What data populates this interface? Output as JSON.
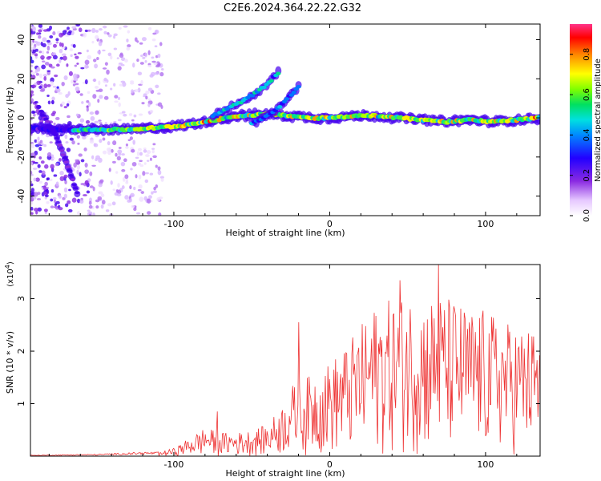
{
  "title": "C2E6.2024.364.22.22.G32",
  "chart_data": [
    {
      "type": "heatmap",
      "xlabel": "Height of straight line (km)",
      "ylabel": "Frequency (Hz)",
      "xlim": [
        -192,
        135
      ],
      "ylim": [
        -50,
        48
      ],
      "x_ticks": [
        -100,
        0,
        100
      ],
      "y_ticks": [
        -40,
        -20,
        0,
        20,
        40
      ],
      "colorbar": {
        "label": "Normalized spectral amplitude",
        "range": [
          0,
          0.95
        ],
        "ticks": [
          "0.0",
          "0.2",
          "0.4",
          "0.6",
          "0.8"
        ]
      },
      "ridge_main": {
        "x": [
          -192,
          -180,
          -165,
          -150,
          -130,
          -110,
          -95,
          -80,
          -60,
          -40,
          -25,
          -10,
          0,
          15,
          30,
          45,
          60,
          75,
          90,
          105,
          120,
          135
        ],
        "y": [
          -5,
          -6,
          -6,
          -6,
          -6,
          -5,
          -4,
          -2,
          1,
          2,
          1,
          0,
          0,
          1,
          1,
          0,
          -1,
          -2,
          -1,
          -2,
          -1,
          0
        ]
      },
      "ridge_branch_upper": {
        "x": [
          -75,
          -65,
          -55,
          -45,
          -38,
          -32
        ],
        "y": [
          1,
          5,
          9,
          14,
          19,
          24
        ]
      },
      "ridge_branch_lower": {
        "x": [
          -50,
          -42,
          -35,
          -28,
          -20
        ],
        "y": [
          -3,
          0,
          4,
          9,
          16
        ]
      },
      "ridge_diagonal": {
        "x": [
          -185,
          -175,
          -168,
          -162
        ],
        "y": [
          3,
          -10,
          -25,
          -38
        ]
      }
    },
    {
      "type": "line",
      "xlabel": "Height of straight line (km)",
      "ylabel": "SNR (10 * v/v)",
      "y_multiplier": "(x10",
      "y_multiplier_exp": "4",
      "y_multiplier_close": ")",
      "xlim": [
        -192,
        135
      ],
      "ylim": [
        0,
        3.65
      ],
      "x_ticks": [
        -100,
        0,
        100
      ],
      "y_ticks": [
        1,
        2,
        3
      ],
      "color": "#ee3333",
      "envelope": {
        "x": [
          -192,
          -150,
          -120,
          -110,
          -100,
          -90,
          -80,
          -70,
          -60,
          -50,
          -40,
          -30,
          -25,
          -20,
          -15,
          -10,
          -5,
          0,
          10,
          20,
          30,
          40,
          50,
          60,
          70,
          80,
          90,
          100,
          110,
          120,
          135
        ],
        "y": [
          0.02,
          0.04,
          0.08,
          0.08,
          0.15,
          0.35,
          0.55,
          0.45,
          0.45,
          0.5,
          0.6,
          1.0,
          1.4,
          1.3,
          1.5,
          1.6,
          1.7,
          1.8,
          2.1,
          2.5,
          2.9,
          3.0,
          3.1,
          3.0,
          3.1,
          3.0,
          2.8,
          2.8,
          2.6,
          2.5,
          2.4
        ]
      },
      "peaks": [
        {
          "x": -72,
          "y": 0.85
        },
        {
          "x": -20,
          "y": 2.55
        },
        {
          "x": 45,
          "y": 3.35
        },
        {
          "x": 70,
          "y": 3.65
        }
      ]
    }
  ]
}
